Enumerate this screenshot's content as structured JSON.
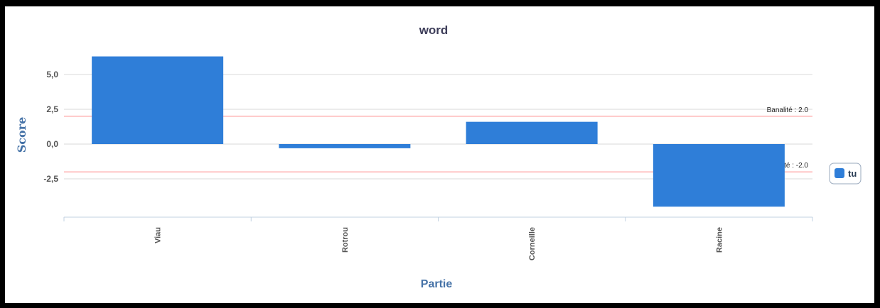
{
  "chart_data": {
    "type": "bar",
    "title": "word",
    "xlabel": "Partie",
    "ylabel": "Score",
    "categories": [
      "Viau",
      "Rotrou",
      "Corneille",
      "Racine"
    ],
    "series": [
      {
        "name": "tu",
        "color": "#2f7ed8",
        "values": [
          6.3,
          -0.3,
          1.6,
          -4.5
        ]
      }
    ],
    "ylim": [
      -5,
      7
    ],
    "yticks": [
      5.0,
      2.5,
      0.0,
      -2.5
    ],
    "ytick_labels": [
      "5,0",
      "2,5",
      "0,0",
      "-2,5"
    ],
    "grid": true,
    "legend_position": "right",
    "plot_lines": [
      {
        "value": 2.0,
        "label": "Banalité : 2.0",
        "color": "#ff9999"
      },
      {
        "value": -2.0,
        "label": "Banalité : -2.0",
        "color": "#ff9999"
      }
    ]
  }
}
